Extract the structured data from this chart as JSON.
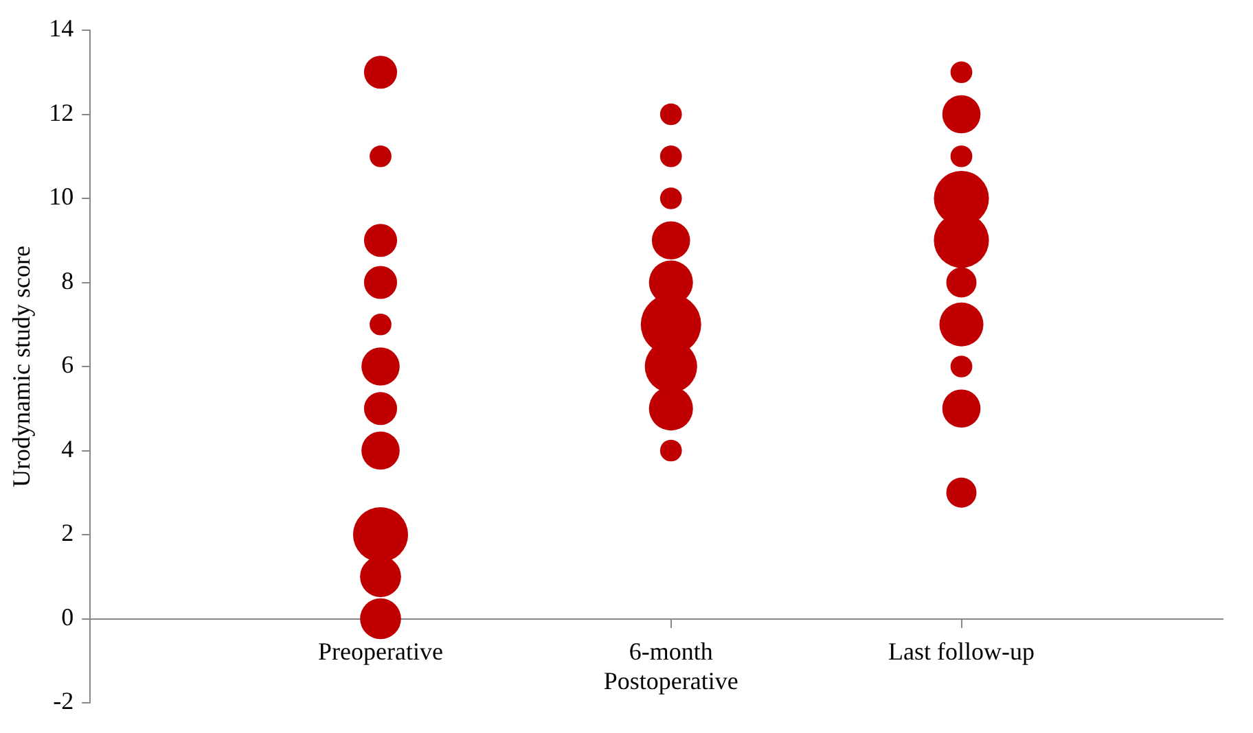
{
  "chart_data": {
    "type": "bubble",
    "ylabel": "Urodynamic study score",
    "categories": [
      "Preoperative",
      "6-month Postoperative",
      "Last follow-up"
    ],
    "ylim": [
      -2,
      14
    ],
    "yticks": [
      -2,
      0,
      2,
      4,
      6,
      8,
      10,
      12,
      14
    ],
    "grid": false,
    "legend": false,
    "marker": "circle",
    "series": [
      {
        "color": "#c00000",
        "x": [
          "Preoperative",
          "Preoperative",
          "Preoperative",
          "Preoperative",
          "Preoperative",
          "Preoperative",
          "Preoperative",
          "Preoperative",
          "Preoperative",
          "Preoperative",
          "Preoperative",
          "6-month Postoperative",
          "6-month Postoperative",
          "6-month Postoperative",
          "6-month Postoperative",
          "6-month Postoperative",
          "6-month Postoperative",
          "6-month Postoperative",
          "6-month Postoperative",
          "6-month Postoperative",
          "Last follow-up",
          "Last follow-up",
          "Last follow-up",
          "Last follow-up",
          "Last follow-up",
          "Last follow-up",
          "Last follow-up",
          "Last follow-up",
          "Last follow-up",
          "Last follow-up"
        ],
        "values": [
          13,
          11,
          9,
          8,
          7,
          6,
          5,
          4,
          2,
          1,
          0,
          12,
          11,
          10,
          9,
          8,
          7,
          6,
          5,
          4,
          13,
          12,
          11,
          10,
          9,
          8,
          7,
          6,
          5,
          3
        ],
        "sizes": [
          0.3,
          0.13,
          0.3,
          0.3,
          0.13,
          0.4,
          0.3,
          0.4,
          0.83,
          0.46,
          0.46,
          0.13,
          0.13,
          0.13,
          0.4,
          0.53,
          1,
          0.75,
          0.53,
          0.13,
          0.13,
          0.4,
          0.13,
          0.83,
          0.83,
          0.25,
          0.53,
          0.13,
          0.4,
          0.25
        ]
      }
    ]
  }
}
